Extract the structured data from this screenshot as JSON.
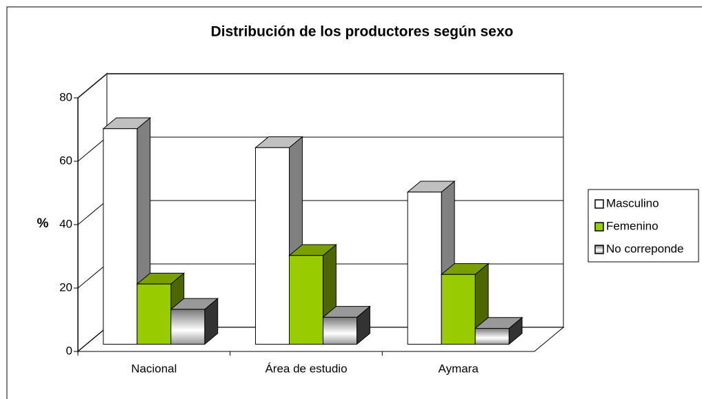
{
  "chart_data": {
    "type": "bar3d",
    "title": "Distribución de los productores según sexo",
    "y_label": "%",
    "categories": [
      "Nacional",
      "Área de estudio",
      "Aymara"
    ],
    "series": [
      {
        "name": "Masculino",
        "color": "#ffffff",
        "values": [
          68,
          62,
          48
        ]
      },
      {
        "name": "Femenino",
        "color": "#99cc00",
        "values": [
          19,
          28,
          22
        ]
      },
      {
        "name": "No correponde",
        "color": "#b0b0b0",
        "values": [
          11,
          8.5,
          5
        ]
      }
    ],
    "ylim": [
      0,
      80
    ],
    "yticks": [
      0,
      20,
      40,
      60,
      80
    ],
    "grid": true,
    "legend": "right"
  }
}
